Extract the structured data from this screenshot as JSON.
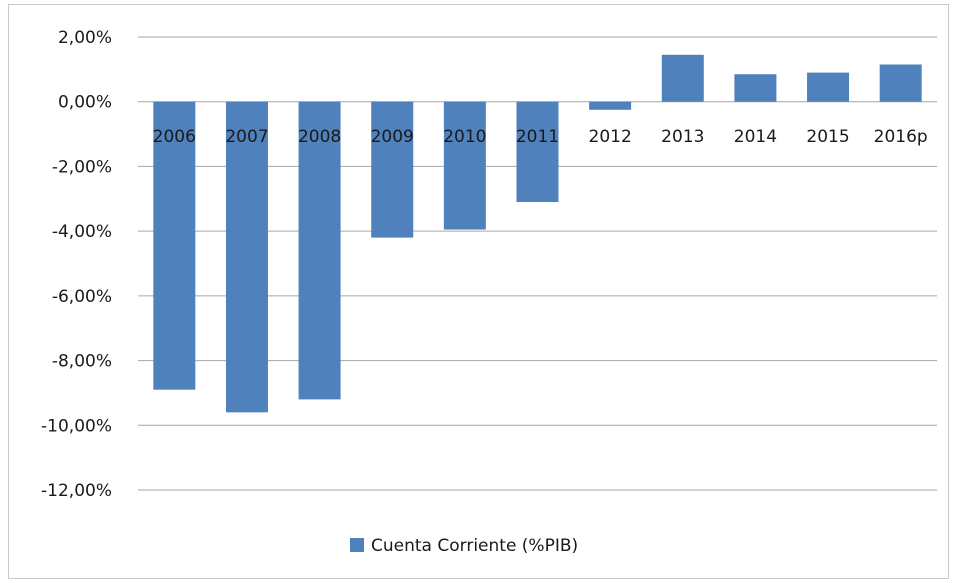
{
  "chart_data": {
    "type": "bar",
    "categories": [
      "2006",
      "2007",
      "2008",
      "2009",
      "2010",
      "2011",
      "2012",
      "2013",
      "2014",
      "2015",
      "2016p"
    ],
    "series": [
      {
        "name": "Cuenta Corriente (%PIB)",
        "values": [
          -8.9,
          -9.6,
          -9.2,
          -4.2,
          -3.95,
          -3.1,
          -0.25,
          1.45,
          0.85,
          0.9,
          1.15
        ]
      }
    ],
    "ylim": [
      -12,
      2
    ],
    "yticks": [
      2,
      0,
      -2,
      -4,
      -6,
      -8,
      -10,
      -12
    ],
    "ytick_labels": [
      "2,00%",
      "0,00%",
      "-2,00%",
      "-4,00%",
      "-6,00%",
      "-8,00%",
      "-10,00%",
      "-12,00%"
    ],
    "grid": true,
    "legend_position": "bottom",
    "bar_color": "#4f81bd",
    "grid_color": "#a6a6a6"
  }
}
